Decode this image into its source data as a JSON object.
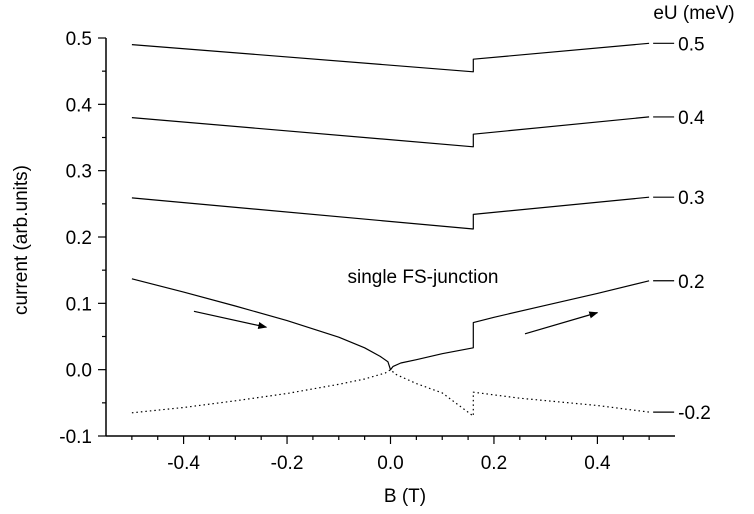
{
  "chart_data": {
    "type": "line",
    "xlabel": "B (T)",
    "ylabel": "current (arb.units)",
    "xlim": [
      -0.55,
      0.55
    ],
    "ylim": [
      -0.1,
      0.5
    ],
    "x_ticks": [
      -0.4,
      -0.2,
      0.0,
      0.2,
      0.4
    ],
    "x_tick_labels": [
      "-0.4",
      "-0.2",
      "0.0",
      "0.2",
      "0.4"
    ],
    "y_ticks": [
      -0.1,
      0.0,
      0.1,
      0.2,
      0.3,
      0.4,
      0.5
    ],
    "y_tick_labels": [
      "-0.1",
      "0.0",
      "0.1",
      "0.2",
      "0.3",
      "0.4",
      "0.5"
    ],
    "grid": false,
    "legend_title": "eU (meV)",
    "annotation": "single FS-junction",
    "series": [
      {
        "name": "0.5",
        "style": "solid",
        "points": [
          [
            -0.5,
            0.49
          ],
          [
            0.16,
            0.449
          ],
          [
            0.16,
            0.468
          ],
          [
            0.5,
            0.492
          ]
        ]
      },
      {
        "name": "0.4",
        "style": "solid",
        "points": [
          [
            -0.5,
            0.38
          ],
          [
            0.16,
            0.336
          ],
          [
            0.16,
            0.355
          ],
          [
            0.5,
            0.381
          ]
        ]
      },
      {
        "name": "0.3",
        "style": "solid",
        "points": [
          [
            -0.5,
            0.259
          ],
          [
            0.16,
            0.212
          ],
          [
            0.16,
            0.234
          ],
          [
            0.5,
            0.26
          ]
        ]
      },
      {
        "name": "0.2",
        "style": "solid",
        "points": [
          [
            -0.5,
            0.137
          ],
          [
            -0.4,
            0.117
          ],
          [
            -0.3,
            0.096
          ],
          [
            -0.2,
            0.074
          ],
          [
            -0.1,
            0.049
          ],
          [
            -0.05,
            0.033
          ],
          [
            -0.02,
            0.02
          ],
          [
            -0.005,
            0.012
          ],
          [
            0.0,
            0.0
          ],
          [
            0.005,
            0.005
          ],
          [
            0.02,
            0.01
          ],
          [
            0.05,
            0.015
          ],
          [
            0.1,
            0.024
          ],
          [
            0.16,
            0.033
          ],
          [
            0.16,
            0.071
          ],
          [
            0.2,
            0.079
          ],
          [
            0.3,
            0.097
          ],
          [
            0.4,
            0.115
          ],
          [
            0.5,
            0.134
          ]
        ]
      },
      {
        "name": "-0.2",
        "style": "dotted",
        "points": [
          [
            -0.5,
            -0.065
          ],
          [
            -0.4,
            -0.057
          ],
          [
            -0.3,
            -0.047
          ],
          [
            -0.2,
            -0.036
          ],
          [
            -0.1,
            -0.022
          ],
          [
            -0.05,
            -0.014
          ],
          [
            -0.01,
            -0.005
          ],
          [
            0.0,
            0.0
          ],
          [
            0.01,
            -0.007
          ],
          [
            0.05,
            -0.021
          ],
          [
            0.1,
            -0.035
          ],
          [
            0.16,
            -0.07
          ],
          [
            0.16,
            -0.034
          ],
          [
            0.25,
            -0.043
          ],
          [
            0.4,
            -0.054
          ],
          [
            0.5,
            -0.064
          ]
        ]
      }
    ],
    "arrows": [
      {
        "from": [
          -0.38,
          0.088
        ],
        "to": [
          -0.24,
          0.064
        ]
      },
      {
        "from": [
          0.26,
          0.054
        ],
        "to": [
          0.4,
          0.086
        ]
      }
    ]
  }
}
